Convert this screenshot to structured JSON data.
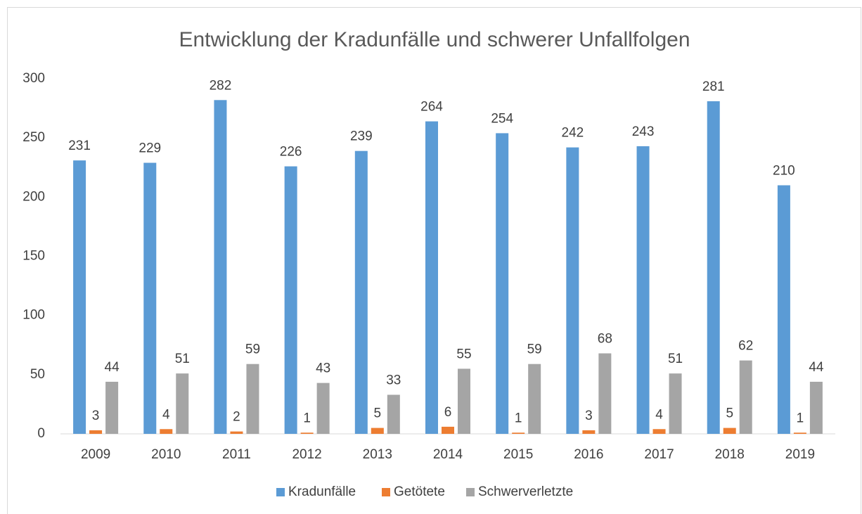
{
  "chart_data": {
    "type": "bar",
    "title": "Entwicklung der Kradunfälle und schwerer Unfallfolgen",
    "categories": [
      "2009",
      "2010",
      "2011",
      "2012",
      "2013",
      "2014",
      "2015",
      "2016",
      "2017",
      "2018",
      "2019"
    ],
    "series": [
      {
        "name": "Kradunfälle",
        "color": "#5b9bd5",
        "values": [
          231,
          229,
          282,
          226,
          239,
          264,
          254,
          242,
          243,
          281,
          210
        ]
      },
      {
        "name": "Getötete",
        "color": "#ed7d31",
        "values": [
          3,
          4,
          2,
          1,
          5,
          6,
          1,
          3,
          4,
          5,
          1
        ]
      },
      {
        "name": "Schwerverletzte",
        "color": "#a5a5a5",
        "values": [
          44,
          51,
          59,
          43,
          33,
          55,
          59,
          68,
          51,
          62,
          44
        ]
      }
    ],
    "ylim": [
      0,
      300
    ],
    "yticks": [
      0,
      50,
      100,
      150,
      200,
      250,
      300
    ],
    "grid": false,
    "legend": "bottom"
  }
}
